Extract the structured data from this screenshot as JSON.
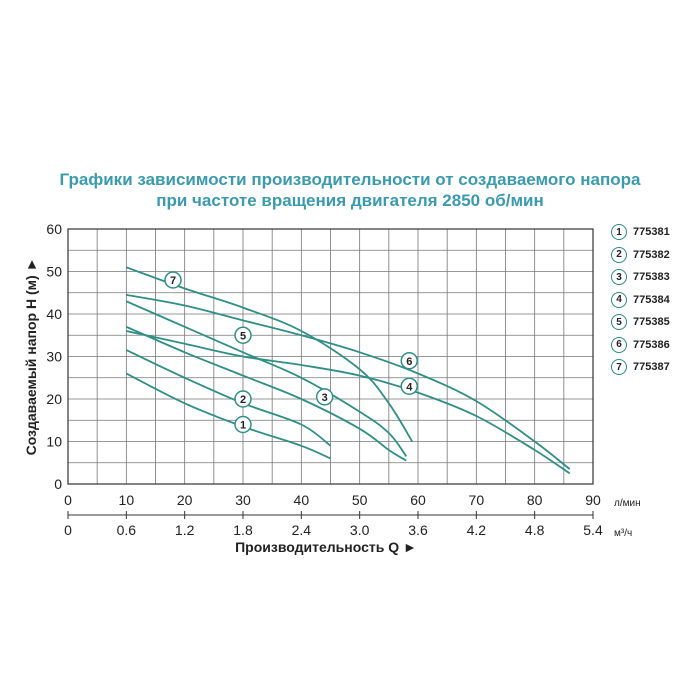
{
  "title_line1": "Графики зависимости производительности от создаваемого напора",
  "title_line2": "при частоте вращения двигателя 2850 об/мин",
  "colors": {
    "title": "#3a9ab0",
    "curve": "#2f8f86",
    "grid": "#777777"
  },
  "chart_data": {
    "type": "line",
    "title": "Графики зависимости производительности от создаваемого напора при частоте вращения двигателя 2850 об/мин",
    "xlabel": "Производительность Q ►",
    "ylabel": "Создаваемый напор H (м) ►",
    "x_unit_primary": "л/мин",
    "x_unit_secondary": "м³/ч",
    "xlim": [
      0,
      90
    ],
    "ylim": [
      0,
      60
    ],
    "x_ticks": [
      "0",
      "10",
      "20",
      "30",
      "40",
      "50",
      "60",
      "70",
      "80",
      "90"
    ],
    "x2_ticks": [
      "0",
      "0.6",
      "1.2",
      "1.8",
      "2.4",
      "3.0",
      "3.6",
      "4.2",
      "4.8",
      "5.4"
    ],
    "y_ticks": [
      "0",
      "10",
      "20",
      "30",
      "40",
      "50",
      "60"
    ],
    "grid": true,
    "series": [
      {
        "name": "775381",
        "label": "1",
        "points": [
          [
            10,
            26
          ],
          [
            20,
            19
          ],
          [
            30,
            13.5
          ],
          [
            40,
            9
          ],
          [
            45,
            6
          ]
        ],
        "label_at": [
          30,
          14
        ]
      },
      {
        "name": "775382",
        "label": "2",
        "points": [
          [
            10,
            31.5
          ],
          [
            20,
            25
          ],
          [
            30,
            19
          ],
          [
            40,
            14
          ],
          [
            45,
            9
          ]
        ],
        "label_at": [
          30,
          20
        ]
      },
      {
        "name": "775383",
        "label": "3",
        "points": [
          [
            10,
            37
          ],
          [
            20,
            31
          ],
          [
            30,
            25.5
          ],
          [
            40,
            20
          ],
          [
            50,
            13
          ],
          [
            55,
            8
          ],
          [
            58,
            5.5
          ]
        ],
        "label_at": [
          44,
          20.5
        ]
      },
      {
        "name": "775384",
        "label": "4",
        "points": [
          [
            10,
            36
          ],
          [
            20,
            33
          ],
          [
            30,
            30
          ],
          [
            40,
            28
          ],
          [
            50,
            25.5
          ],
          [
            60,
            21.5
          ],
          [
            70,
            16
          ],
          [
            80,
            8
          ],
          [
            86,
            2.5
          ]
        ],
        "label_at": [
          58.5,
          23
        ]
      },
      {
        "name": "775385",
        "label": "5",
        "points": [
          [
            10,
            43
          ],
          [
            20,
            37
          ],
          [
            30,
            31
          ],
          [
            40,
            25
          ],
          [
            50,
            17
          ],
          [
            55,
            12
          ],
          [
            58,
            6.5
          ]
        ],
        "label_at": [
          30,
          35
        ]
      },
      {
        "name": "775386",
        "label": "6",
        "points": [
          [
            10,
            44.5
          ],
          [
            20,
            42
          ],
          [
            30,
            38.5
          ],
          [
            40,
            35
          ],
          [
            50,
            31
          ],
          [
            60,
            26
          ],
          [
            70,
            19.5
          ],
          [
            80,
            10
          ],
          [
            86,
            3.5
          ]
        ],
        "label_at": [
          58.5,
          29
        ]
      },
      {
        "name": "775387",
        "label": "7",
        "points": [
          [
            10,
            51
          ],
          [
            20,
            46
          ],
          [
            30,
            41.5
          ],
          [
            40,
            36
          ],
          [
            50,
            27
          ],
          [
            55,
            19
          ],
          [
            59,
            10
          ]
        ],
        "label_at": [
          18,
          48
        ]
      }
    ]
  },
  "legend": [
    {
      "num": "1",
      "code": "775381"
    },
    {
      "num": "2",
      "code": "775382"
    },
    {
      "num": "3",
      "code": "775383"
    },
    {
      "num": "4",
      "code": "775384"
    },
    {
      "num": "5",
      "code": "775385"
    },
    {
      "num": "6",
      "code": "775386"
    },
    {
      "num": "7",
      "code": "775387"
    }
  ]
}
